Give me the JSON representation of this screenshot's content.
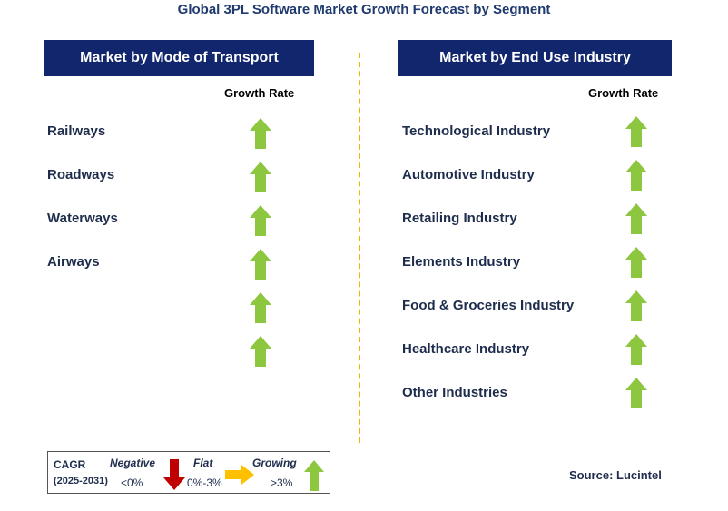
{
  "title": "Global 3PL Software Market Growth Forecast by Segment",
  "left_panel": {
    "header": "Market by Mode of Transport",
    "growth_rate_label": "Growth Rate",
    "items": [
      "Railways",
      "Roadways",
      "Waterways",
      "Airways"
    ],
    "arrow_count": 6
  },
  "right_panel": {
    "header": "Market by End Use Industry",
    "growth_rate_label": "Growth Rate",
    "items": [
      "Technological Industry",
      "Automotive Industry",
      "Retailing Industry",
      "Elements Industry",
      "Food & Groceries Industry",
      "Healthcare Industry",
      "Other Industries"
    ]
  },
  "legend": {
    "cagr_label": "CAGR",
    "period": "(2025-2031)",
    "negative_label": "Negative",
    "negative_range": "<0%",
    "flat_label": "Flat",
    "flat_range": "0%-3%",
    "growing_label": "Growing",
    "growing_range": ">3%"
  },
  "source": "Source: Lucintel",
  "colors": {
    "header_bg": "#12266e",
    "growing_arrow": "#8dc63f",
    "negative_arrow": "#c00000",
    "flat_arrow": "#ffc000",
    "divider": "#f2b400"
  },
  "icons": {
    "growing": "arrow-up-icon",
    "negative": "arrow-down-icon",
    "flat": "arrow-right-icon"
  }
}
